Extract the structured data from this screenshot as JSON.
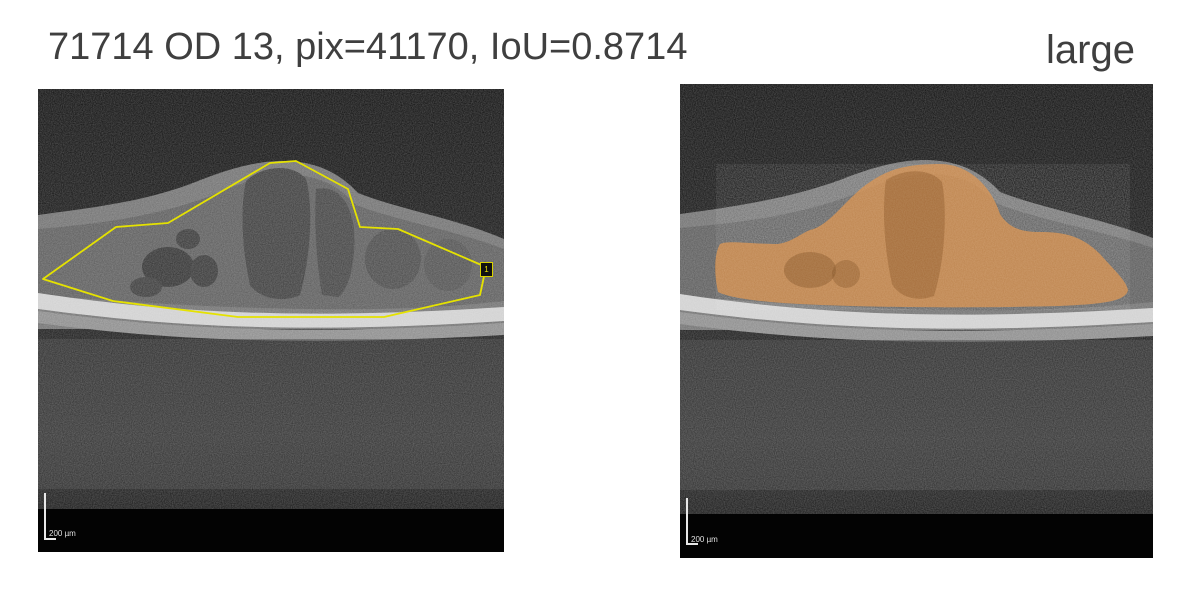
{
  "header": {
    "title": "71714 OD 13, pix=41170, IoU=0.8714",
    "size_label": "large"
  },
  "left_image": {
    "scale_label": "200 µm",
    "marker_label": "1",
    "outline_color": "#e5e200"
  },
  "right_image": {
    "scale_label": "200 µm",
    "fill_color": "#d9904a"
  }
}
